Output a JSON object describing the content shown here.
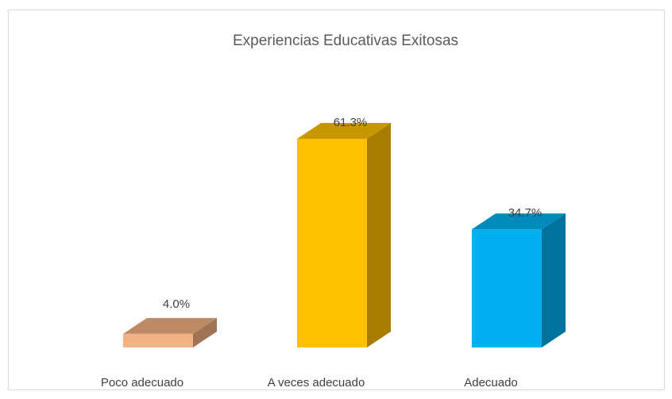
{
  "chart_data": {
    "type": "bar3d",
    "title": "Experiencias Educativas Exitosas",
    "categories": [
      "Poco adecuado",
      "A veces adecuado",
      "Adecuado"
    ],
    "values": [
      4.0,
      61.3,
      34.7
    ],
    "value_labels": [
      "4.0%",
      "61.3%",
      "34.7%"
    ],
    "colors": [
      "#f4b183",
      "#ffc000",
      "#00b0f0"
    ]
  }
}
